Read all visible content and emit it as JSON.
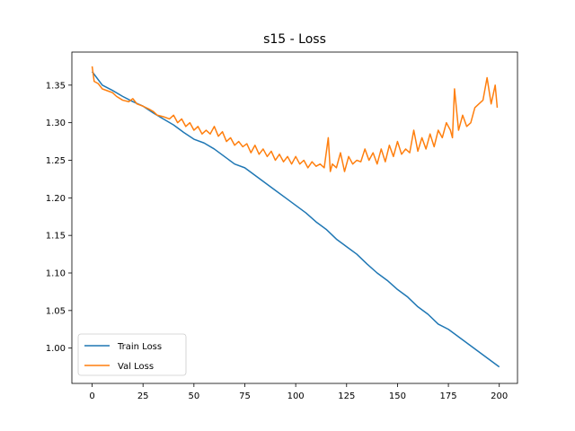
{
  "chart_data": {
    "type": "line",
    "title": "s15 - Loss",
    "xlabel": "",
    "ylabel": "",
    "xlim": [
      -9.95,
      208.95
    ],
    "ylim": [
      0.953,
      1.394
    ],
    "xticks": [
      0,
      25,
      50,
      75,
      100,
      125,
      150,
      175,
      200
    ],
    "yticks": [
      1.0,
      1.05,
      1.1,
      1.15,
      1.2,
      1.25,
      1.3,
      1.35
    ],
    "xtick_labels": [
      "0",
      "25",
      "50",
      "75",
      "100",
      "125",
      "150",
      "175",
      "200"
    ],
    "ytick_labels": [
      "1.00",
      "1.05",
      "1.10",
      "1.15",
      "1.20",
      "1.25",
      "1.30",
      "1.35"
    ],
    "grid": false,
    "legend_position": "lower-left",
    "series": [
      {
        "name": "Train Loss",
        "color": "#1f77b4",
        "x": [
          0,
          5,
          10,
          15,
          20,
          25,
          30,
          35,
          40,
          45,
          50,
          55,
          60,
          65,
          70,
          75,
          80,
          85,
          90,
          95,
          100,
          105,
          110,
          115,
          120,
          125,
          130,
          135,
          140,
          145,
          150,
          155,
          160,
          165,
          170,
          175,
          180,
          185,
          190,
          195,
          200
        ],
        "y": [
          1.368,
          1.35,
          1.343,
          1.335,
          1.328,
          1.322,
          1.313,
          1.305,
          1.297,
          1.287,
          1.278,
          1.273,
          1.265,
          1.255,
          1.245,
          1.24,
          1.23,
          1.22,
          1.21,
          1.2,
          1.19,
          1.18,
          1.168,
          1.158,
          1.145,
          1.135,
          1.125,
          1.112,
          1.1,
          1.09,
          1.078,
          1.068,
          1.055,
          1.045,
          1.032,
          1.025,
          1.015,
          1.005,
          0.995,
          0.985,
          0.975
        ]
      },
      {
        "name": "Val Loss",
        "color": "#ff7f0e",
        "x": [
          0,
          1,
          3,
          5,
          8,
          10,
          12,
          15,
          18,
          20,
          22,
          25,
          28,
          30,
          32,
          35,
          38,
          40,
          42,
          44,
          46,
          48,
          50,
          52,
          54,
          56,
          58,
          60,
          62,
          64,
          66,
          68,
          70,
          72,
          74,
          76,
          78,
          80,
          82,
          84,
          86,
          88,
          90,
          92,
          94,
          96,
          98,
          100,
          102,
          104,
          106,
          108,
          110,
          112,
          114,
          116,
          117,
          118,
          120,
          122,
          124,
          126,
          128,
          130,
          132,
          134,
          136,
          138,
          140,
          142,
          144,
          146,
          148,
          150,
          152,
          154,
          156,
          158,
          160,
          162,
          164,
          166,
          168,
          170,
          172,
          174,
          176,
          177,
          178,
          180,
          182,
          184,
          186,
          188,
          190,
          192,
          194,
          196,
          198,
          199
        ],
        "y": [
          1.375,
          1.355,
          1.352,
          1.345,
          1.342,
          1.34,
          1.335,
          1.33,
          1.328,
          1.332,
          1.325,
          1.322,
          1.318,
          1.315,
          1.31,
          1.308,
          1.305,
          1.31,
          1.3,
          1.305,
          1.295,
          1.3,
          1.29,
          1.295,
          1.285,
          1.29,
          1.285,
          1.295,
          1.282,
          1.288,
          1.275,
          1.28,
          1.27,
          1.275,
          1.268,
          1.272,
          1.26,
          1.27,
          1.258,
          1.265,
          1.255,
          1.262,
          1.25,
          1.258,
          1.248,
          1.255,
          1.245,
          1.255,
          1.245,
          1.25,
          1.24,
          1.248,
          1.242,
          1.245,
          1.24,
          1.28,
          1.235,
          1.245,
          1.24,
          1.26,
          1.235,
          1.255,
          1.245,
          1.25,
          1.248,
          1.265,
          1.25,
          1.26,
          1.245,
          1.265,
          1.248,
          1.27,
          1.255,
          1.275,
          1.258,
          1.265,
          1.26,
          1.29,
          1.262,
          1.28,
          1.265,
          1.285,
          1.268,
          1.29,
          1.28,
          1.3,
          1.29,
          1.28,
          1.345,
          1.29,
          1.31,
          1.295,
          1.3,
          1.32,
          1.325,
          1.33,
          1.36,
          1.325,
          1.35,
          1.32
        ]
      }
    ]
  }
}
